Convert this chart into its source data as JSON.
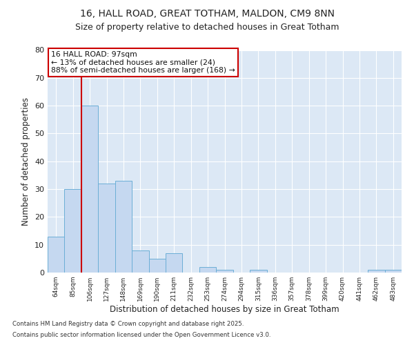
{
  "title1": "16, HALL ROAD, GREAT TOTHAM, MALDON, CM9 8NN",
  "title2": "Size of property relative to detached houses in Great Totham",
  "xlabel": "Distribution of detached houses by size in Great Totham",
  "ylabel": "Number of detached properties",
  "categories": [
    "64sqm",
    "85sqm",
    "106sqm",
    "127sqm",
    "148sqm",
    "169sqm",
    "190sqm",
    "211sqm",
    "232sqm",
    "253sqm",
    "274sqm",
    "294sqm",
    "315sqm",
    "336sqm",
    "357sqm",
    "378sqm",
    "399sqm",
    "420sqm",
    "441sqm",
    "462sqm",
    "483sqm"
  ],
  "values": [
    13,
    30,
    60,
    32,
    33,
    8,
    5,
    7,
    0,
    2,
    1,
    0,
    1,
    0,
    0,
    0,
    0,
    0,
    0,
    1,
    1
  ],
  "bar_color": "#c5d8f0",
  "bar_edge_color": "#6baed6",
  "vline_color": "#cc0000",
  "annotation_text": "16 HALL ROAD: 97sqm\n← 13% of detached houses are smaller (24)\n88% of semi-detached houses are larger (168) →",
  "annotation_box_facecolor": "#ffffff",
  "annotation_box_edgecolor": "#cc0000",
  "ylim": [
    0,
    80
  ],
  "yticks": [
    0,
    10,
    20,
    30,
    40,
    50,
    60,
    70,
    80
  ],
  "fig_bg_color": "#ffffff",
  "plot_bg_color": "#dce8f5",
  "grid_color": "#ffffff",
  "footer1": "Contains HM Land Registry data © Crown copyright and database right 2025.",
  "footer2": "Contains public sector information licensed under the Open Government Licence v3.0."
}
